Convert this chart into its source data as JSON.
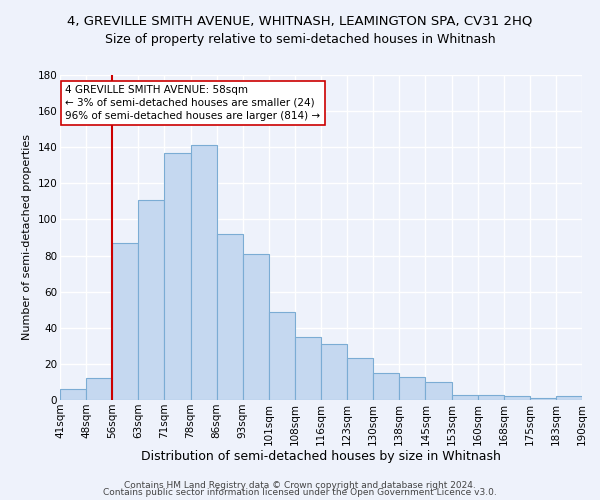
{
  "title": "4, GREVILLE SMITH AVENUE, WHITNASH, LEAMINGTON SPA, CV31 2HQ",
  "subtitle": "Size of property relative to semi-detached houses in Whitnash",
  "xlabel": "Distribution of semi-detached houses by size in Whitnash",
  "ylabel": "Number of semi-detached properties",
  "bin_labels": [
    "41sqm",
    "48sqm",
    "56sqm",
    "63sqm",
    "71sqm",
    "78sqm",
    "86sqm",
    "93sqm",
    "101sqm",
    "108sqm",
    "116sqm",
    "123sqm",
    "130sqm",
    "138sqm",
    "145sqm",
    "153sqm",
    "160sqm",
    "168sqm",
    "175sqm",
    "183sqm",
    "190sqm"
  ],
  "bar_heights": [
    6,
    12,
    87,
    111,
    137,
    141,
    92,
    81,
    49,
    35,
    31,
    23,
    15,
    13,
    10,
    3,
    3,
    2,
    1,
    2
  ],
  "bar_color": "#c5d8f0",
  "bar_edge_color": "#7bacd4",
  "vline_color": "#cc0000",
  "annotation_title": "4 GREVILLE SMITH AVENUE: 58sqm",
  "annotation_line1": "← 3% of semi-detached houses are smaller (24)",
  "annotation_line2": "96% of semi-detached houses are larger (814) →",
  "annotation_box_color": "#ffffff",
  "annotation_box_edge": "#cc0000",
  "ylim": [
    0,
    180
  ],
  "yticks": [
    0,
    20,
    40,
    60,
    80,
    100,
    120,
    140,
    160,
    180
  ],
  "footer1": "Contains HM Land Registry data © Crown copyright and database right 2024.",
  "footer2": "Contains public sector information licensed under the Open Government Licence v3.0.",
  "bg_color": "#eef2fb",
  "grid_color": "#ffffff",
  "title_fontsize": 9.5,
  "subtitle_fontsize": 9,
  "xlabel_fontsize": 9,
  "ylabel_fontsize": 8,
  "tick_fontsize": 7.5,
  "footer_fontsize": 6.5,
  "vline_bar_index": 2
}
